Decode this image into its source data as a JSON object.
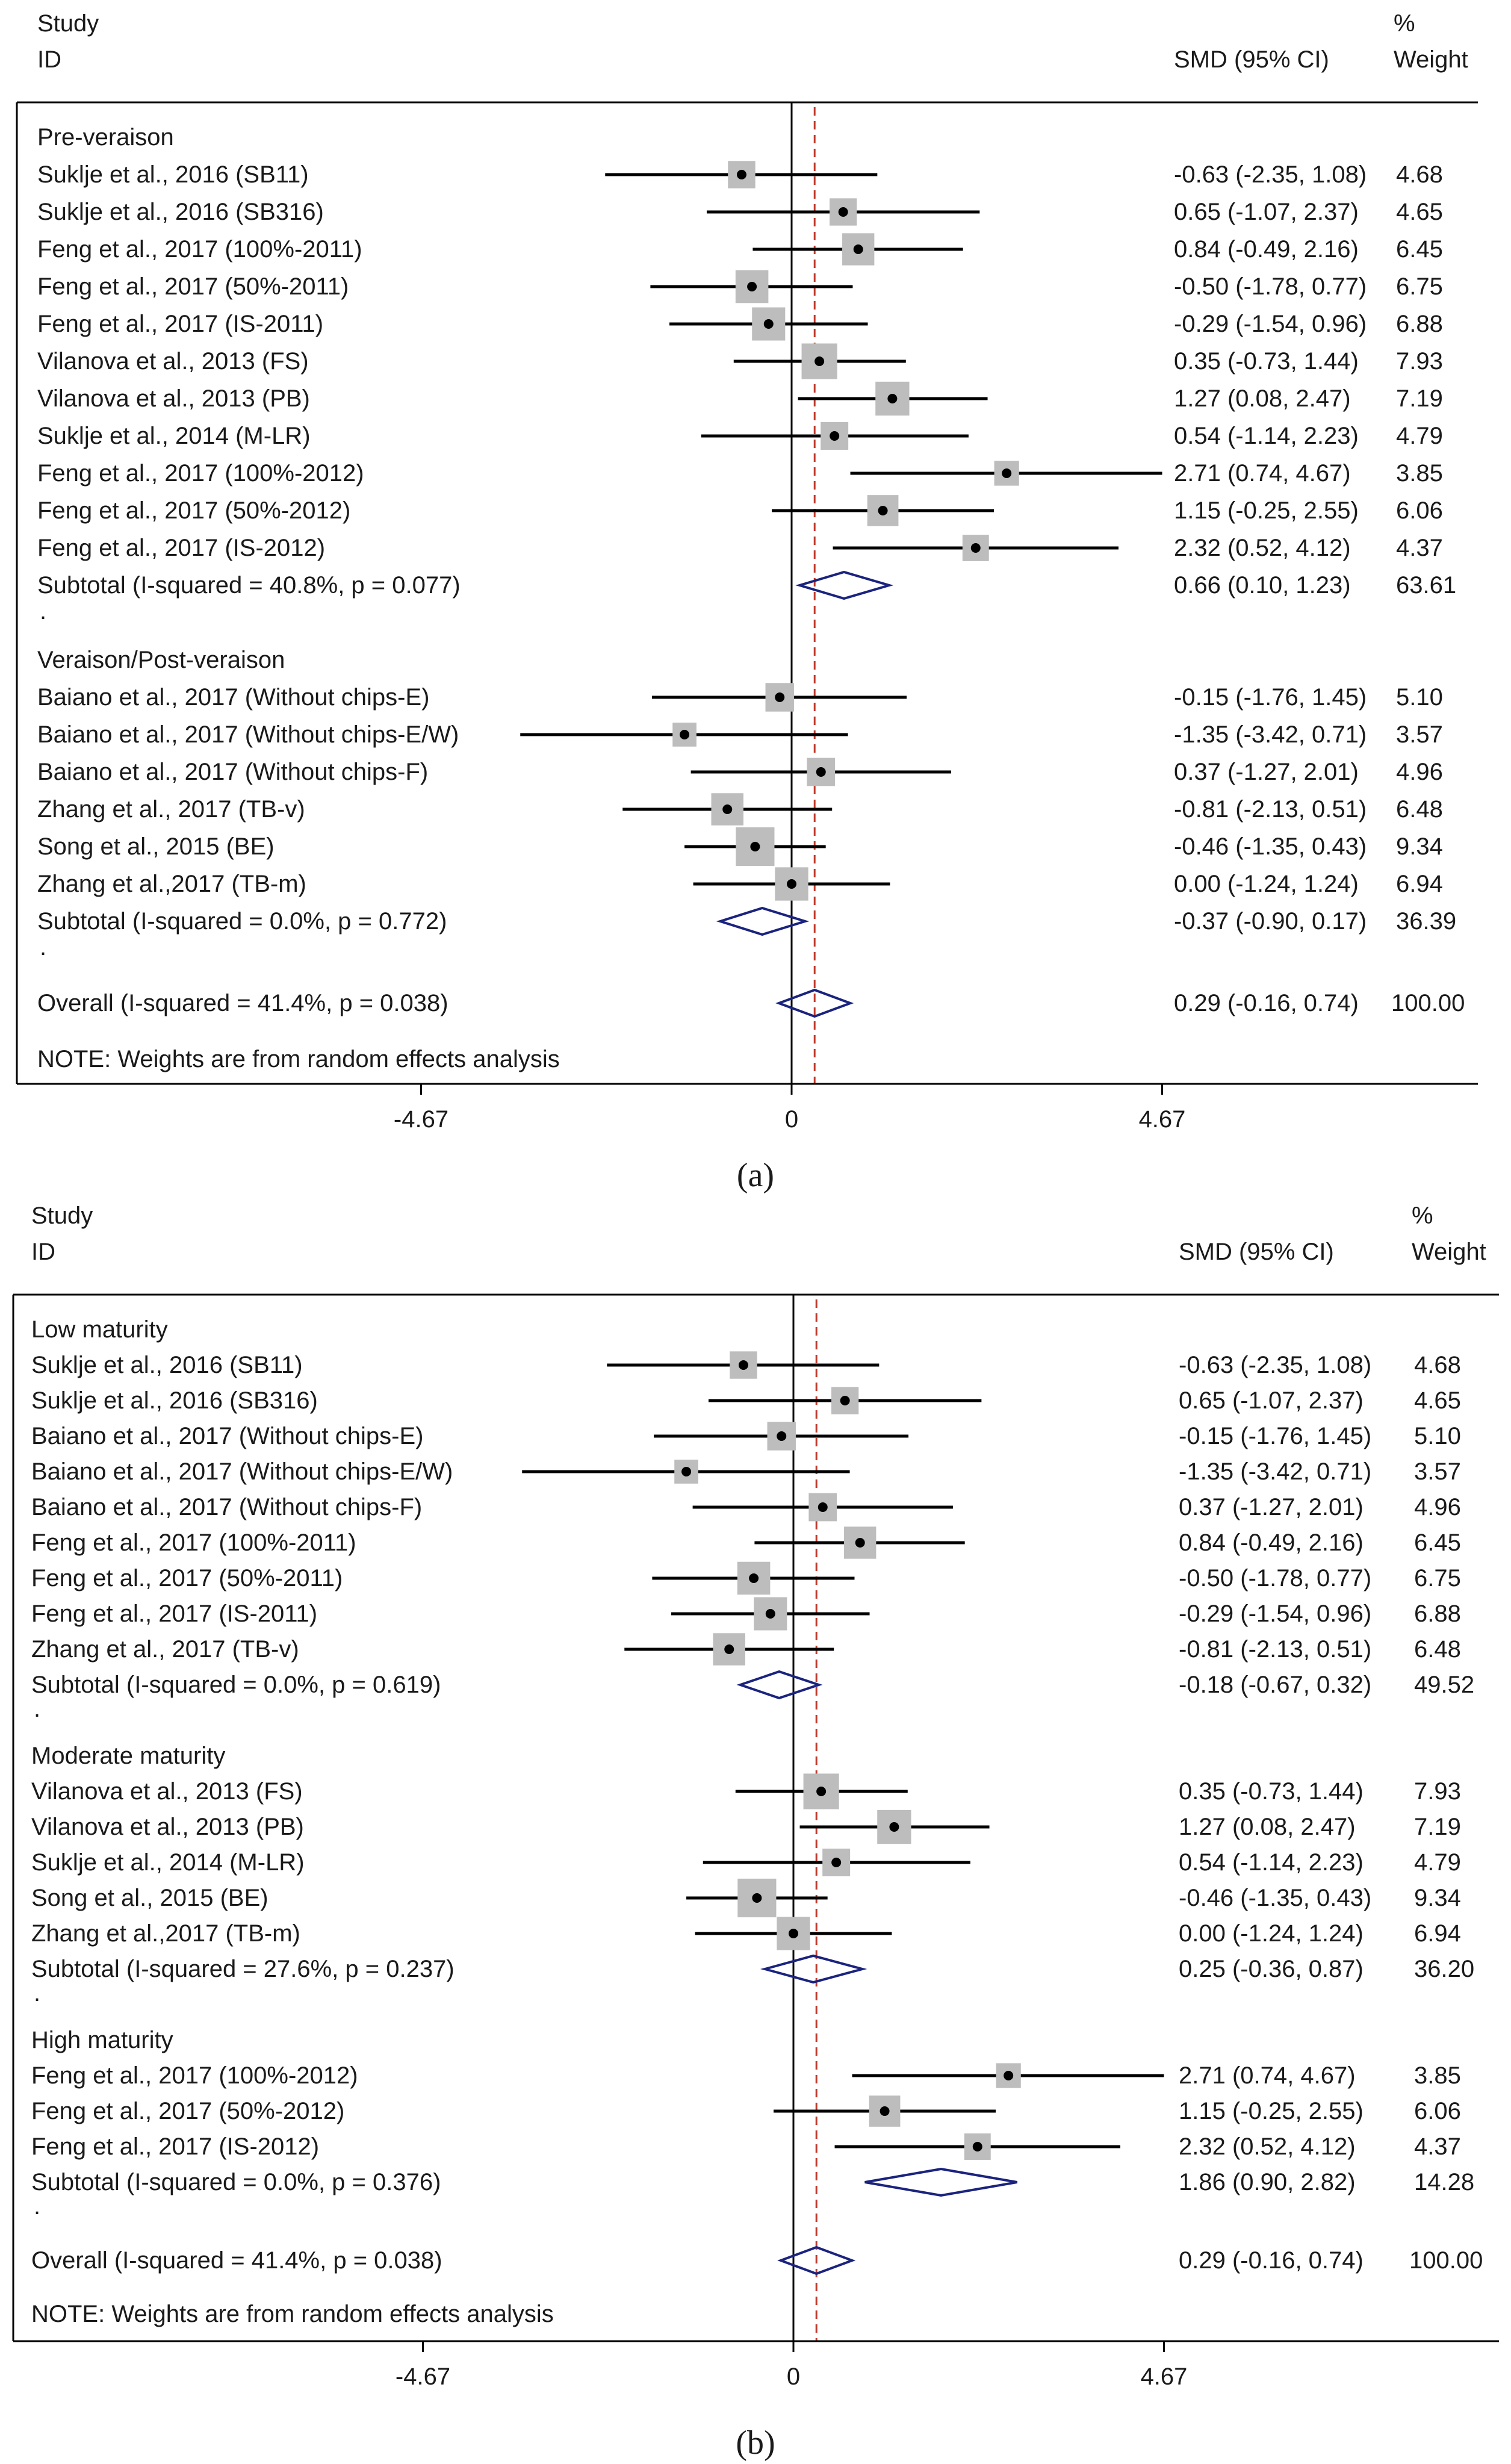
{
  "chart_data": [
    {
      "type": "forest",
      "panel_label": "(a)",
      "header": {
        "study": "Study",
        "id": "ID",
        "smd": "SMD (95% CI)",
        "pct": "%",
        "weight": "Weight"
      },
      "x_ticks": [
        -4.67,
        0,
        4.67
      ],
      "x_tick_labels": [
        "-4.67",
        "0",
        "4.67"
      ],
      "reference_line": 0,
      "overall_line": 0.29,
      "note": "NOTE: Weights are from random effects analysis",
      "colors": {
        "marker_box": "#bdbdbd",
        "diamond": "#1a237e",
        "dashed": "#c0392b",
        "line": "#000000"
      },
      "groups": [
        {
          "title": "Pre-veraison",
          "studies": [
            {
              "label": "Suklje et al., 2016 (SB11)",
              "est": -0.63,
              "lo": -2.35,
              "hi": 1.08,
              "ci": "-0.63 (-2.35, 1.08)",
              "weight": "4.68",
              "w": 4.68
            },
            {
              "label": "Suklje et al., 2016 (SB316)",
              "est": 0.65,
              "lo": -1.07,
              "hi": 2.37,
              "ci": "0.65 (-1.07, 2.37)",
              "weight": "4.65",
              "w": 4.65
            },
            {
              "label": "Feng et al., 2017 (100%-2011)",
              "est": 0.84,
              "lo": -0.49,
              "hi": 2.16,
              "ci": "0.84 (-0.49, 2.16)",
              "weight": "6.45",
              "w": 6.45
            },
            {
              "label": "Feng et al., 2017 (50%-2011)",
              "est": -0.5,
              "lo": -1.78,
              "hi": 0.77,
              "ci": "-0.50 (-1.78, 0.77)",
              "weight": "6.75",
              "w": 6.75
            },
            {
              "label": "Feng et al., 2017 (IS-2011)",
              "est": -0.29,
              "lo": -1.54,
              "hi": 0.96,
              "ci": "-0.29 (-1.54, 0.96)",
              "weight": "6.88",
              "w": 6.88
            },
            {
              "label": "Vilanova et al., 2013 (FS)",
              "est": 0.35,
              "lo": -0.73,
              "hi": 1.44,
              "ci": "0.35 (-0.73, 1.44)",
              "weight": "7.93",
              "w": 7.93
            },
            {
              "label": "Vilanova et al., 2013 (PB)",
              "est": 1.27,
              "lo": 0.08,
              "hi": 2.47,
              "ci": "1.27 (0.08, 2.47)",
              "weight": "7.19",
              "w": 7.19
            },
            {
              "label": "Suklje et al., 2014 (M-LR)",
              "est": 0.54,
              "lo": -1.14,
              "hi": 2.23,
              "ci": "0.54 (-1.14, 2.23)",
              "weight": "4.79",
              "w": 4.79
            },
            {
              "label": "Feng et al., 2017 (100%-2012)",
              "est": 2.71,
              "lo": 0.74,
              "hi": 4.67,
              "ci": "2.71 (0.74, 4.67)",
              "weight": "3.85",
              "w": 3.85
            },
            {
              "label": "Feng et al., 2017 (50%-2012)",
              "est": 1.15,
              "lo": -0.25,
              "hi": 2.55,
              "ci": "1.15 (-0.25, 2.55)",
              "weight": "6.06",
              "w": 6.06
            },
            {
              "label": "Feng et al., 2017 (IS-2012)",
              "est": 2.32,
              "lo": 0.52,
              "hi": 4.12,
              "ci": "2.32 (0.52, 4.12)",
              "weight": "4.37",
              "w": 4.37
            }
          ],
          "subtotal": {
            "label": "Subtotal  (I-squared = 40.8%, p = 0.077)",
            "est": 0.66,
            "lo": 0.1,
            "hi": 1.23,
            "ci": "0.66 (0.10, 1.23)",
            "weight": "63.61"
          }
        },
        {
          "title": "Veraison/Post-veraison",
          "studies": [
            {
              "label": "Baiano et al., 2017 (Without chips-E)",
              "est": -0.15,
              "lo": -1.76,
              "hi": 1.45,
              "ci": "-0.15 (-1.76, 1.45)",
              "weight": "5.10",
              "w": 5.1
            },
            {
              "label": "Baiano et al., 2017 (Without chips-E/W)",
              "est": -1.35,
              "lo": -3.42,
              "hi": 0.71,
              "ci": "-1.35 (-3.42, 0.71)",
              "weight": "3.57",
              "w": 3.57
            },
            {
              "label": "Baiano et al., 2017 (Without chips-F)",
              "est": 0.37,
              "lo": -1.27,
              "hi": 2.01,
              "ci": "0.37 (-1.27, 2.01)",
              "weight": "4.96",
              "w": 4.96
            },
            {
              "label": "Zhang et al., 2017 (TB-v)",
              "est": -0.81,
              "lo": -2.13,
              "hi": 0.51,
              "ci": "-0.81 (-2.13, 0.51)",
              "weight": "6.48",
              "w": 6.48
            },
            {
              "label": "Song et al., 2015 (BE)",
              "est": -0.46,
              "lo": -1.35,
              "hi": 0.43,
              "ci": "-0.46 (-1.35, 0.43)",
              "weight": "9.34",
              "w": 9.34
            },
            {
              "label": "Zhang et al.,2017 (TB-m)",
              "est": 0.0,
              "lo": -1.24,
              "hi": 1.24,
              "ci": "0.00 (-1.24, 1.24)",
              "weight": "6.94",
              "w": 6.94
            }
          ],
          "subtotal": {
            "label": "Subtotal  (I-squared = 0.0%, p = 0.772)",
            "est": -0.37,
            "lo": -0.9,
            "hi": 0.17,
            "ci": "-0.37 (-0.90, 0.17)",
            "weight": "36.39"
          }
        }
      ],
      "overall": {
        "label": "Overall  (I-squared = 41.4%, p = 0.038)",
        "est": 0.29,
        "lo": -0.16,
        "hi": 0.74,
        "ci": "0.29 (-0.16, 0.74)",
        "weight": "100.00"
      }
    },
    {
      "type": "forest",
      "panel_label": "(b)",
      "header": {
        "study": "Study",
        "id": "ID",
        "smd": "SMD (95% CI)",
        "pct": "%",
        "weight": "Weight"
      },
      "x_ticks": [
        -4.67,
        0,
        4.67
      ],
      "x_tick_labels": [
        "-4.67",
        "0",
        "4.67"
      ],
      "reference_line": 0,
      "overall_line": 0.29,
      "note": "NOTE: Weights are from random effects analysis",
      "colors": {
        "marker_box": "#bdbdbd",
        "diamond": "#1a237e",
        "dashed": "#c0392b",
        "line": "#000000"
      },
      "groups": [
        {
          "title": "Low maturity",
          "studies": [
            {
              "label": "Suklje et al., 2016 (SB11)",
              "est": -0.63,
              "lo": -2.35,
              "hi": 1.08,
              "ci": "-0.63 (-2.35, 1.08)",
              "weight": "4.68",
              "w": 4.68
            },
            {
              "label": "Suklje et al., 2016 (SB316)",
              "est": 0.65,
              "lo": -1.07,
              "hi": 2.37,
              "ci": "0.65 (-1.07, 2.37)",
              "weight": "4.65",
              "w": 4.65
            },
            {
              "label": "Baiano et al., 2017 (Without chips-E)",
              "est": -0.15,
              "lo": -1.76,
              "hi": 1.45,
              "ci": "-0.15 (-1.76, 1.45)",
              "weight": "5.10",
              "w": 5.1
            },
            {
              "label": "Baiano et al., 2017 (Without chips-E/W)",
              "est": -1.35,
              "lo": -3.42,
              "hi": 0.71,
              "ci": "-1.35 (-3.42, 0.71)",
              "weight": "3.57",
              "w": 3.57
            },
            {
              "label": "Baiano et al., 2017 (Without chips-F)",
              "est": 0.37,
              "lo": -1.27,
              "hi": 2.01,
              "ci": "0.37 (-1.27, 2.01)",
              "weight": "4.96",
              "w": 4.96
            },
            {
              "label": "Feng et al., 2017 (100%-2011)",
              "est": 0.84,
              "lo": -0.49,
              "hi": 2.16,
              "ci": "0.84 (-0.49, 2.16)",
              "weight": "6.45",
              "w": 6.45
            },
            {
              "label": "Feng et al., 2017 (50%-2011)",
              "est": -0.5,
              "lo": -1.78,
              "hi": 0.77,
              "ci": "-0.50 (-1.78, 0.77)",
              "weight": "6.75",
              "w": 6.75
            },
            {
              "label": "Feng et al., 2017 (IS-2011)",
              "est": -0.29,
              "lo": -1.54,
              "hi": 0.96,
              "ci": "-0.29 (-1.54, 0.96)",
              "weight": "6.88",
              "w": 6.88
            },
            {
              "label": "Zhang et al., 2017 (TB-v)",
              "est": -0.81,
              "lo": -2.13,
              "hi": 0.51,
              "ci": "-0.81 (-2.13, 0.51)",
              "weight": "6.48",
              "w": 6.48
            }
          ],
          "subtotal": {
            "label": "Subtotal  (I-squared = 0.0%, p = 0.619)",
            "est": -0.18,
            "lo": -0.67,
            "hi": 0.32,
            "ci": "-0.18 (-0.67, 0.32)",
            "weight": "49.52"
          }
        },
        {
          "title": "Moderate maturity",
          "studies": [
            {
              "label": "Vilanova et al., 2013 (FS)",
              "est": 0.35,
              "lo": -0.73,
              "hi": 1.44,
              "ci": "0.35 (-0.73, 1.44)",
              "weight": "7.93",
              "w": 7.93
            },
            {
              "label": "Vilanova et al., 2013 (PB)",
              "est": 1.27,
              "lo": 0.08,
              "hi": 2.47,
              "ci": "1.27 (0.08, 2.47)",
              "weight": "7.19",
              "w": 7.19
            },
            {
              "label": "Suklje et al., 2014 (M-LR)",
              "est": 0.54,
              "lo": -1.14,
              "hi": 2.23,
              "ci": "0.54 (-1.14, 2.23)",
              "weight": "4.79",
              "w": 4.79
            },
            {
              "label": "Song et al., 2015 (BE)",
              "est": -0.46,
              "lo": -1.35,
              "hi": 0.43,
              "ci": "-0.46 (-1.35, 0.43)",
              "weight": "9.34",
              "w": 9.34
            },
            {
              "label": "Zhang et al.,2017 (TB-m)",
              "est": 0.0,
              "lo": -1.24,
              "hi": 1.24,
              "ci": "0.00 (-1.24, 1.24)",
              "weight": "6.94",
              "w": 6.94
            }
          ],
          "subtotal": {
            "label": "Subtotal  (I-squared = 27.6%, p = 0.237)",
            "est": 0.25,
            "lo": -0.36,
            "hi": 0.87,
            "ci": "0.25 (-0.36, 0.87)",
            "weight": "36.20"
          }
        },
        {
          "title": "High maturity",
          "studies": [
            {
              "label": "Feng et al., 2017 (100%-2012)",
              "est": 2.71,
              "lo": 0.74,
              "hi": 4.67,
              "ci": "2.71 (0.74, 4.67)",
              "weight": "3.85",
              "w": 3.85
            },
            {
              "label": "Feng et al., 2017 (50%-2012)",
              "est": 1.15,
              "lo": -0.25,
              "hi": 2.55,
              "ci": "1.15 (-0.25, 2.55)",
              "weight": "6.06",
              "w": 6.06
            },
            {
              "label": "Feng et al., 2017 (IS-2012)",
              "est": 2.32,
              "lo": 0.52,
              "hi": 4.12,
              "ci": "2.32 (0.52, 4.12)",
              "weight": "4.37",
              "w": 4.37
            }
          ],
          "subtotal": {
            "label": "Subtotal  (I-squared = 0.0%, p = 0.376)",
            "est": 1.86,
            "lo": 0.9,
            "hi": 2.82,
            "ci": "1.86 (0.90, 2.82)",
            "weight": "14.28"
          }
        }
      ],
      "overall": {
        "label": "Overall  (I-squared = 41.4%, p = 0.038)",
        "est": 0.29,
        "lo": -0.16,
        "hi": 0.74,
        "ci": "0.29 (-0.16, 0.74)",
        "weight": "100.00"
      }
    }
  ]
}
